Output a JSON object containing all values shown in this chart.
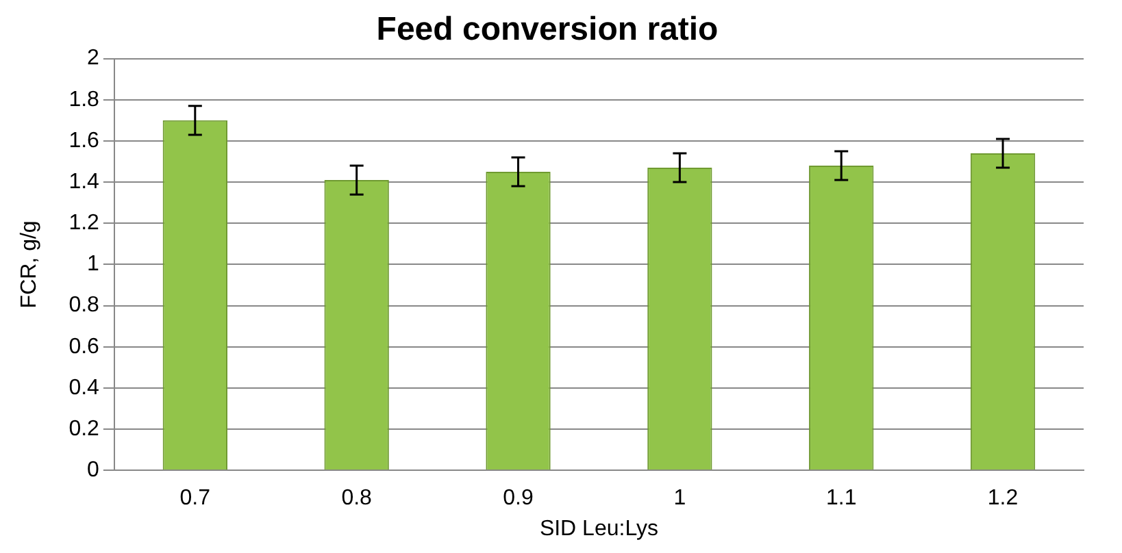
{
  "chart_data": {
    "type": "bar",
    "title": "Feed conversion ratio",
    "xlabel": "SID Leu:Lys",
    "ylabel": "FCR, g/g",
    "categories": [
      "0.7",
      "0.8",
      "0.9",
      "1",
      "1.1",
      "1.2"
    ],
    "values": [
      1.7,
      1.41,
      1.45,
      1.47,
      1.48,
      1.54
    ],
    "errors": [
      0.07,
      0.07,
      0.07,
      0.07,
      0.07,
      0.07
    ],
    "color": "#92c44a",
    "ylim": [
      0,
      2
    ],
    "yticks": [
      0,
      0.2,
      0.4,
      0.6,
      0.8,
      1,
      1.2,
      1.4,
      1.6,
      1.8,
      2
    ],
    "grid": "y"
  }
}
